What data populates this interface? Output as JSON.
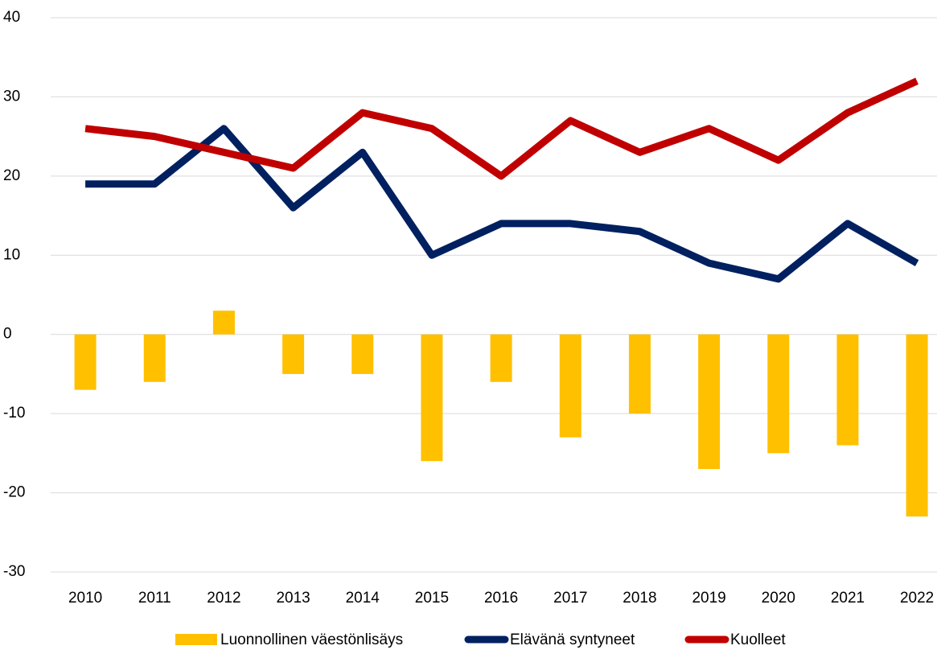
{
  "chart_data": {
    "type": "combo",
    "categories": [
      "2010",
      "2011",
      "2012",
      "2013",
      "2014",
      "2015",
      "2016",
      "2017",
      "2018",
      "2019",
      "2020",
      "2021",
      "2022"
    ],
    "series": [
      {
        "name": "Luonnollinen väestönlisäys",
        "type": "bar",
        "color": "#FFC000",
        "values": [
          -7,
          -6,
          3,
          -5,
          -5,
          -16,
          -6,
          -13,
          -10,
          -17,
          -15,
          -14,
          -23
        ]
      },
      {
        "name": "Elävänä syntyneet",
        "type": "line",
        "color": "#002060",
        "values": [
          19,
          19,
          26,
          16,
          23,
          10,
          14,
          14,
          13,
          9,
          7,
          14,
          9
        ]
      },
      {
        "name": "Kuolleet",
        "type": "line",
        "color": "#C00000",
        "values": [
          26,
          25,
          23,
          21,
          28,
          26,
          20,
          27,
          23,
          26,
          22,
          28,
          32
        ]
      }
    ],
    "ylim": [
      -30,
      40
    ],
    "yticks": [
      -30,
      -20,
      -10,
      0,
      10,
      20,
      30,
      40
    ],
    "grid": true,
    "legend": "bottom"
  }
}
